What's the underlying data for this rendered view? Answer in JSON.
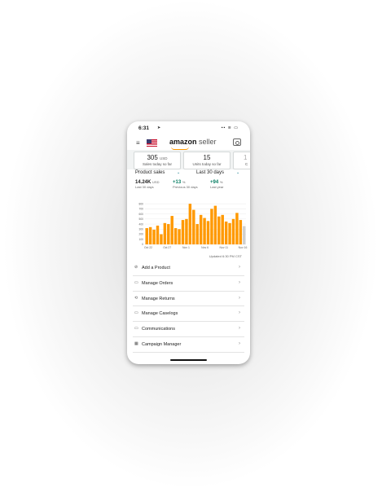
{
  "status": {
    "time": "6:31",
    "signal": "▪▪ ≋ ▭"
  },
  "nav": {
    "logo_main": "amazon",
    "logo_sub": "seller"
  },
  "cards": [
    {
      "value": "305",
      "unit": "USD",
      "label": "Sales today so far"
    },
    {
      "value": "15",
      "unit": "",
      "label": "Units today so far"
    },
    {
      "value": "1",
      "unit": "",
      "label": "C"
    }
  ],
  "selectors": {
    "metric": "Product sales",
    "range": "Last 30 days"
  },
  "kpis": [
    {
      "value": "14.24K",
      "unit": "USD",
      "label": "Last 30 days",
      "color": "#222222"
    },
    {
      "value": "+13",
      "unit": "%",
      "label": "Previous 30 days",
      "color": "#067d62"
    },
    {
      "value": "+94",
      "unit": "%",
      "label": "Last year",
      "color": "#067d62"
    }
  ],
  "chart_data": {
    "type": "bar",
    "yticks": [
      0,
      100,
      200,
      300,
      400,
      500,
      600,
      700,
      800
    ],
    "ylim": [
      0,
      850
    ],
    "xtick_labels": [
      "Oct 22",
      "Oct 27",
      "Nov 1",
      "Nov 6",
      "Nov 11",
      "Nov 16"
    ],
    "values": [
      320,
      340,
      290,
      370,
      200,
      420,
      400,
      560,
      320,
      300,
      480,
      500,
      800,
      680,
      400,
      580,
      520,
      460,
      700,
      760,
      550,
      580,
      450,
      420,
      500,
      620,
      480,
      360
    ],
    "bar_color": "#ff9900",
    "last_bar_color": "#cfcfcf"
  },
  "updated": "Updated 6:30 PM CST",
  "menu_items": [
    {
      "label": "Add a Product",
      "icon": "tag-icon",
      "glyph": "⊘"
    },
    {
      "label": "Manage Orders",
      "icon": "orders-icon",
      "glyph": "▭"
    },
    {
      "label": "Manage Returns",
      "icon": "returns-icon",
      "glyph": "⟲"
    },
    {
      "label": "Manage Caselogs",
      "icon": "chat-icon",
      "glyph": "▭"
    },
    {
      "label": "Communications",
      "icon": "messages-icon",
      "glyph": "▭"
    },
    {
      "label": "Campaign Manager",
      "icon": "campaign-icon",
      "glyph": "▦"
    }
  ]
}
